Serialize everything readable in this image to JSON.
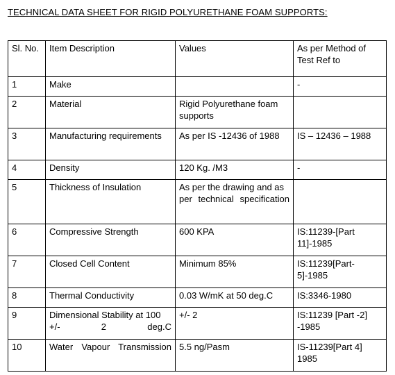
{
  "document": {
    "title": "TECHNICAL DATA SHEET  FOR RIGID POLYURETHANE FOAM SUPPORTS:"
  },
  "table": {
    "headers": {
      "sl_no": "Sl. No.",
      "item": "Item Description",
      "values": "Values",
      "method": "As per Method of Test Ref to"
    },
    "rows": [
      {
        "sl": "1",
        "item": "Make",
        "value": "",
        "method": "-"
      },
      {
        "sl": "2",
        "item": "Material",
        "value": "Rigid Polyurethane foam supports",
        "method": ""
      },
      {
        "sl": "3",
        "item": "Manufacturing requirements",
        "value": "As per IS -12436 of 1988",
        "method": "IS – 12436 – 1988"
      },
      {
        "sl": "4",
        "item": "Density",
        "value": "120 Kg. /M3",
        "method": "-"
      },
      {
        "sl": "5",
        "item": "Thickness of Insulation",
        "value": "As per the drawing and as per technical specification",
        "method": ""
      },
      {
        "sl": "6",
        "item": "Compressive Strength",
        "value": "600 KPA",
        "method": "IS:11239-[Part 11]-1985"
      },
      {
        "sl": "7",
        "item": "Closed Cell Content",
        "value": "Minimum 85%",
        "method": "IS:11239[Part-5]-1985"
      },
      {
        "sl": "8",
        "item": "Thermal Conductivity",
        "value": "0.03 W/mK at 50 deg.C",
        "method": "IS:3346-1980"
      },
      {
        "sl": "9",
        "item": "Dimensional Stability at 100 +/- 2 deg.C",
        "value": "+/- 2",
        "method": "IS:11239 [Part -2] -1985"
      },
      {
        "sl": "10",
        "item": "Water Vapour Transmission",
        "value": "5.5 ng/Pasm",
        "method": "IS-11239[Part 4] 1985"
      }
    ]
  }
}
